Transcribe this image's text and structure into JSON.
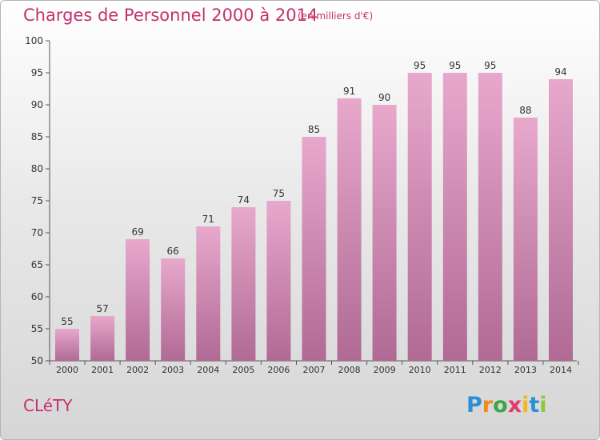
{
  "title": "Charges de Personnel 2000 à 2014",
  "subtitle": "(en milliers d'€)",
  "commune": "CLéTY",
  "logo": {
    "letters": [
      "P",
      "r",
      "o",
      "x",
      "i",
      "t",
      "i"
    ],
    "colors": [
      "#2c8fd8",
      "#f08a1c",
      "#3aa648",
      "#e03a6e",
      "#f0b81c",
      "#2c8fd8",
      "#8ec63f"
    ]
  },
  "colors": {
    "accent": "#c4306d",
    "bar_top": "#e8a8cc",
    "bar_bottom": "#b06a94",
    "axis": "#555555"
  },
  "chart_data": {
    "type": "bar",
    "categories": [
      "2000",
      "2001",
      "2002",
      "2003",
      "2004",
      "2005",
      "2006",
      "2007",
      "2008",
      "2009",
      "2010",
      "2011",
      "2012",
      "2013",
      "2014"
    ],
    "values": [
      55,
      57,
      69,
      66,
      71,
      74,
      75,
      85,
      91,
      90,
      95,
      95,
      95,
      88,
      94
    ],
    "title": "Charges de Personnel 2000 à 2014",
    "xlabel": "",
    "ylabel": "",
    "ylim": [
      50,
      100
    ],
    "yticks": [
      50,
      55,
      60,
      65,
      70,
      75,
      80,
      85,
      90,
      95,
      100
    ],
    "grid": false,
    "legend": "none"
  }
}
